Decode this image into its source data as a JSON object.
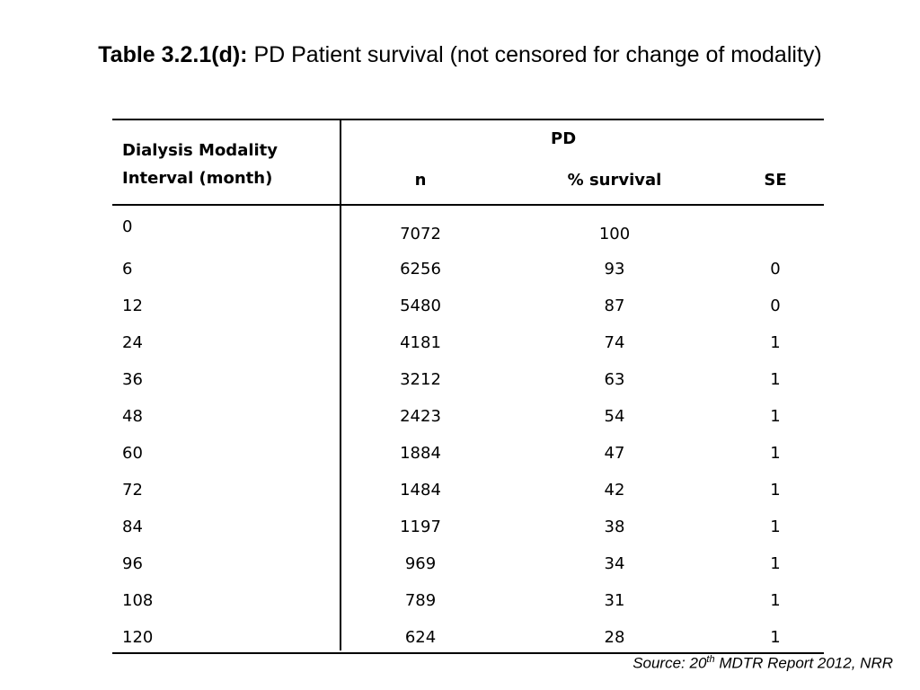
{
  "title": {
    "bold": "Table 3.2.1(d):",
    "text": " PD Patient survival (not censored for change of modality)"
  },
  "table": {
    "row_header": [
      "Dialysis Modality",
      "Interval (month)"
    ],
    "group_header": "PD",
    "columns": [
      "n",
      "% survival",
      "SE"
    ],
    "rows": [
      {
        "interval": "0",
        "n": "7072",
        "survival": "100",
        "se": ""
      },
      {
        "interval": "6",
        "n": "6256",
        "survival": "93",
        "se": "0"
      },
      {
        "interval": "12",
        "n": "5480",
        "survival": "87",
        "se": "0"
      },
      {
        "interval": "24",
        "n": "4181",
        "survival": "74",
        "se": "1"
      },
      {
        "interval": "36",
        "n": "3212",
        "survival": "63",
        "se": "1"
      },
      {
        "interval": "48",
        "n": "2423",
        "survival": "54",
        "se": "1"
      },
      {
        "interval": "60",
        "n": "1884",
        "survival": "47",
        "se": "1"
      },
      {
        "interval": "72",
        "n": "1484",
        "survival": "42",
        "se": "1"
      },
      {
        "interval": "84",
        "n": "1197",
        "survival": "38",
        "se": "1"
      },
      {
        "interval": "96",
        "n": "969",
        "survival": "34",
        "se": "1"
      },
      {
        "interval": "108",
        "n": "789",
        "survival": "31",
        "se": "1"
      },
      {
        "interval": "120",
        "n": "624",
        "survival": "28",
        "se": "1"
      }
    ]
  },
  "source": {
    "prefix": "Source: 20",
    "sup": "th",
    "suffix": " MDTR Report 2012, NRR"
  }
}
